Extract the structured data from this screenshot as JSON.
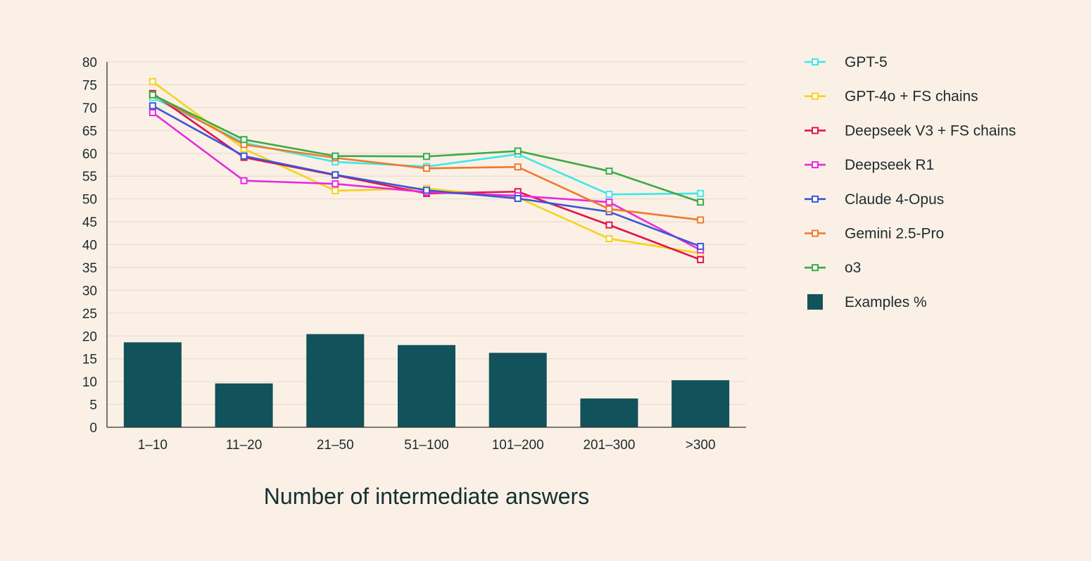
{
  "chart_data": {
    "type": "line",
    "title": "",
    "xlabel": "Number of intermediate answers",
    "ylabel": "",
    "ylim": [
      0,
      80
    ],
    "yticks": [
      "0",
      "5",
      "10",
      "15",
      "20",
      "25",
      "30",
      "35",
      "40",
      "45",
      "50",
      "55",
      "60",
      "65",
      "70",
      "75",
      "80"
    ],
    "grid": "horizontal",
    "legend_position": "right",
    "categories": [
      "1–10",
      "11–20",
      "21–50",
      "51–100",
      "101–200",
      "201–300",
      ">300"
    ],
    "bars": {
      "name": "Examples %",
      "color": "#12525a",
      "values": [
        18.6,
        9.6,
        20.4,
        18.0,
        16.3,
        6.3,
        10.3
      ]
    },
    "series": [
      {
        "name": "GPT-5",
        "color": "#3de8e8",
        "values": [
          72.2,
          62.3,
          58.1,
          57.1,
          59.8,
          51.0,
          51.2
        ]
      },
      {
        "name": "GPT-4o + FS chains",
        "color": "#f4d31c",
        "values": [
          75.7,
          61.0,
          51.8,
          52.3,
          50.3,
          41.3,
          38.1
        ]
      },
      {
        "name": "Deepseek V3 + FS chains",
        "color": "#e3134b",
        "values": [
          73.1,
          59.1,
          55.2,
          51.2,
          51.6,
          44.3,
          36.7
        ]
      },
      {
        "name": "Deepseek R1",
        "color": "#e829df",
        "values": [
          68.9,
          54.0,
          53.3,
          51.5,
          50.7,
          49.3,
          38.8
        ]
      },
      {
        "name": "Claude 4-Opus",
        "color": "#3a57d6",
        "values": [
          70.4,
          59.4,
          55.3,
          51.9,
          50.1,
          47.2,
          39.6
        ]
      },
      {
        "name": "Gemini 2.5-Pro",
        "color": "#f0792a",
        "values": [
          72.8,
          61.9,
          59.0,
          56.7,
          57.0,
          47.8,
          45.4
        ]
      },
      {
        "name": "o3",
        "color": "#3aaa45",
        "values": [
          72.8,
          63.0,
          59.4,
          59.3,
          60.5,
          56.1,
          49.3
        ]
      }
    ]
  }
}
